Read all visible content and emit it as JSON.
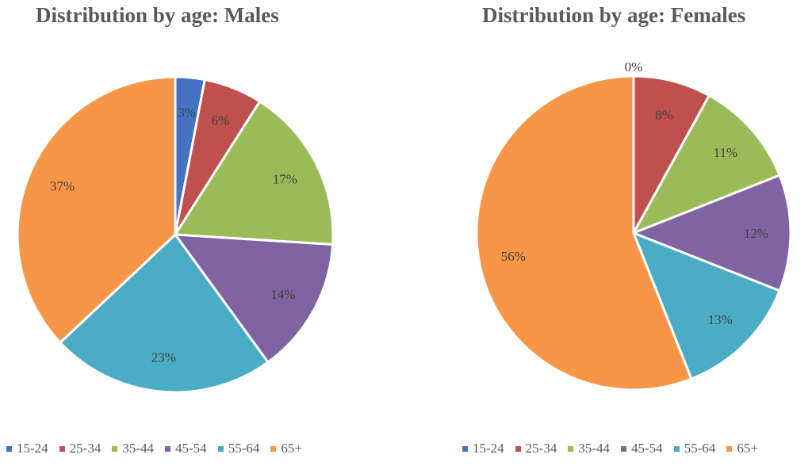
{
  "chart_data": [
    {
      "type": "pie",
      "title": "Distribution by age: Males",
      "categories": [
        "15-24",
        "25-34",
        "35-44",
        "45-54",
        "55-64",
        "65+"
      ],
      "values": [
        3,
        6,
        17,
        14,
        23,
        37
      ],
      "labels": [
        "3%",
        "6%",
        "17%",
        "14%",
        "23%",
        "37%"
      ],
      "legend": "bottom"
    },
    {
      "type": "pie",
      "title": "Distribution by age: Females",
      "categories": [
        "15-24",
        "25-34",
        "35-44",
        "45-54",
        "55-64",
        "65+"
      ],
      "values": [
        0,
        8,
        11,
        12,
        13,
        56
      ],
      "labels": [
        "0%",
        "8%",
        "11%",
        "12%",
        "13%",
        "56%"
      ],
      "legend": "bottom"
    }
  ],
  "colors": [
    "#4472C4",
    "#C0504D",
    "#9BBB59",
    "#8064A2",
    "#4BACC6",
    "#F79646"
  ]
}
